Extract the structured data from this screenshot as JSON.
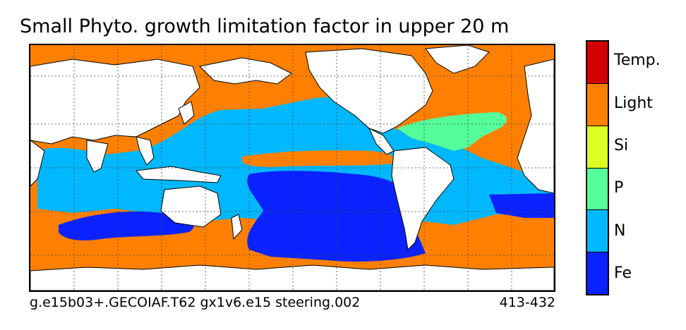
{
  "title": "Small Phyto. growth limitation factor in upper 20 m",
  "caption_left": "g.e15b03+.GECOIAF.T62 gx1v6.e15 steering.002",
  "caption_right": "413-432",
  "colorbar": {
    "categories": [
      {
        "key": "fe",
        "label": "Fe",
        "color": "#0a22ff"
      },
      {
        "key": "n",
        "label": "N",
        "color": "#00b8ff"
      },
      {
        "key": "p",
        "label": "P",
        "color": "#55ff99"
      },
      {
        "key": "si",
        "label": "Si",
        "color": "#ddff22"
      },
      {
        "key": "light",
        "label": "Light",
        "color": "#ff8000"
      },
      {
        "key": "temp",
        "label": "Temp.",
        "color": "#d40000"
      }
    ]
  },
  "map": {
    "land_color": "#ffffff",
    "coast_color": "#000000",
    "grid_color": "#444444"
  }
}
